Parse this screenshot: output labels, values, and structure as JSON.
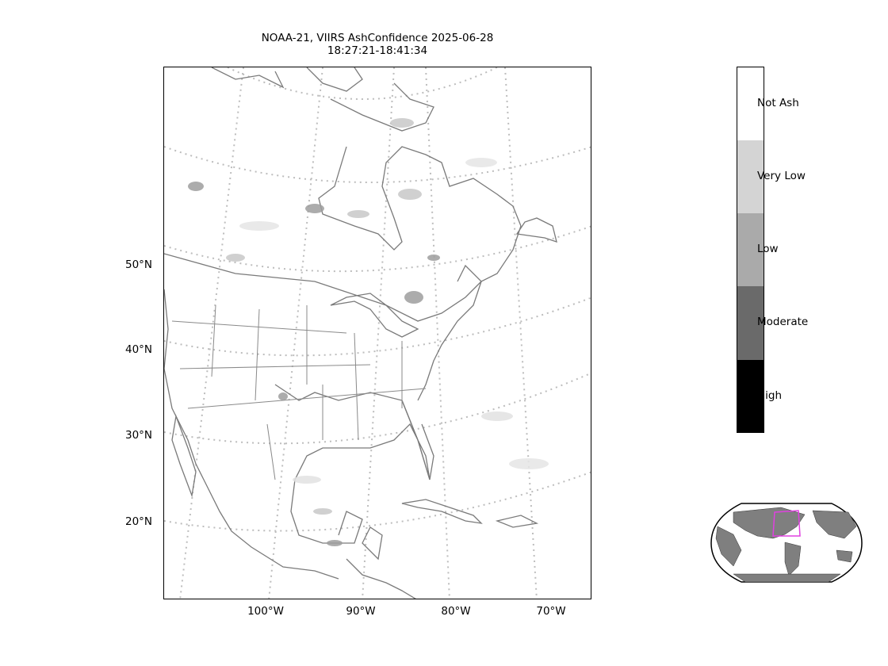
{
  "title": {
    "line1": "NOAA-21, VIIRS AshConfidence 2025-06-28",
    "line2": "18:27:21-18:41:34"
  },
  "map": {
    "lat_labels": [
      "50°N",
      "40°N",
      "30°N",
      "20°N"
    ],
    "lon_labels": [
      "100°W",
      "90°W",
      "80°W",
      "70°W"
    ],
    "coastline_color": "#7a7a7a",
    "gridline_color": "#bdbdbd"
  },
  "colorbar": {
    "categories": [
      {
        "label": "Not Ash",
        "color": "#ffffff"
      },
      {
        "label": "Very Low",
        "color": "#d4d4d4"
      },
      {
        "label": "Low",
        "color": "#aaaaaa"
      },
      {
        "label": "Moderate",
        "color": "#6a6a6a"
      },
      {
        "label": "High",
        "color": "#000000"
      }
    ]
  },
  "inset": {
    "land_color": "#7f7f7f",
    "highlight_color": "#e040e0"
  }
}
